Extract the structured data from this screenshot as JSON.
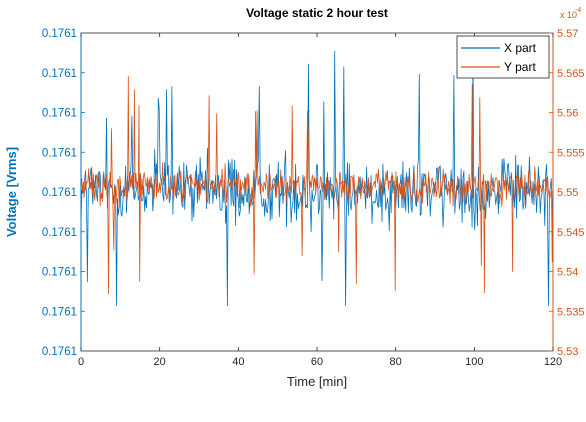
{
  "chart_data": {
    "type": "line",
    "title": "Voltage static 2 hour test",
    "xlabel": "Time [min]",
    "ylabel_left": "Voltage [Vrms]",
    "ylabel_right": "",
    "right_exponent_label": "x 10",
    "right_exponent_power": "-4",
    "xlim": [
      0,
      120
    ],
    "x_ticks": [
      "0",
      "20",
      "40",
      "60",
      "80",
      "100",
      "120"
    ],
    "y_left_ticks": [
      "0.1761",
      "0.1761",
      "0.1761",
      "0.1761",
      "0.1761",
      "0.1761",
      "0.1761",
      "0.1761",
      "0.1761"
    ],
    "y_right_lim": [
      5.53,
      5.57
    ],
    "y_right_ticks": [
      "5.53",
      "5.535",
      "5.54",
      "5.545",
      "5.55",
      "5.555",
      "5.56",
      "5.565",
      "5.57"
    ],
    "legend": {
      "position": "top-right",
      "entries": [
        "X part",
        "Y part"
      ]
    },
    "colors": {
      "x_part": "#0072BD",
      "y_part": "#D95319",
      "left_axis": "#0072BD",
      "right_axis": "#D95319",
      "axis": "#262626"
    },
    "series": [
      {
        "name": "X part",
        "axis": "left",
        "x_range": [
          0,
          120
        ],
        "center": 5.5502,
        "band": [
          5.5455,
          5.555
        ],
        "min": 5.5357,
        "max": 5.568,
        "samples": 520
      },
      {
        "name": "Y part",
        "axis": "right",
        "x_range": [
          0,
          120
        ],
        "center": 5.5507,
        "band": [
          5.5485,
          5.5535
        ],
        "min": 5.5318,
        "max": 5.5648,
        "samples": 620
      }
    ]
  }
}
